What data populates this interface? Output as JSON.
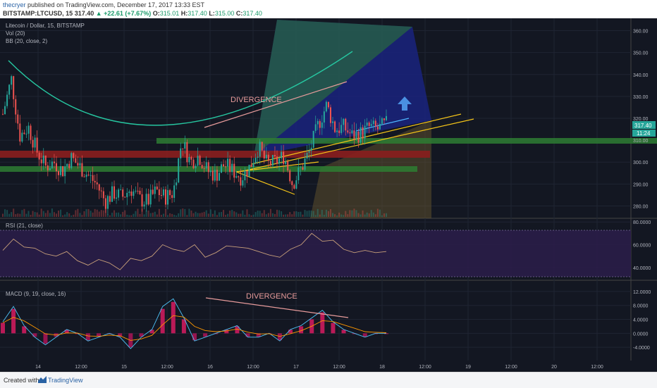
{
  "header": {
    "user": "thecryer",
    "published": "published on TradingView.com, December 17, 2017 13:33 EST",
    "symbol": "BITSTAMP:LTCUSD, 15",
    "last": "317.40",
    "change": "▲ +22.61 (+7.67%)",
    "o_label": "O:",
    "o_val": "315.01",
    "h_label": "H:",
    "h_val": "317.40",
    "l_label": "L:",
    "l_val": "315.00",
    "c_label": "C:",
    "c_val": "317.40"
  },
  "legend": {
    "title": "Litecoin / Dollar, 15, BITSTAMP",
    "vol": "Vol (20)",
    "bb": "BB (20, close, 2)",
    "rsi": "RSI (21, close)",
    "macd": "MACD (9, 19, close, 16)"
  },
  "annotations": {
    "divergence_price": "DIVERGENCE",
    "divergence_macd": "DIVERGENCE"
  },
  "price_badge": {
    "price": "317.40",
    "countdown": "11:24"
  },
  "footer": {
    "created": "Created with",
    "brand": "TradingView"
  },
  "colors": {
    "up": "#26a69a",
    "down": "#ef5350",
    "bg": "#131722",
    "rsi_fill": "#2a1d48",
    "accent_blue": "#2962a4"
  },
  "chart_data": [
    {
      "type": "candlestick",
      "title": "Litecoin / Dollar, 15, BITSTAMP",
      "y_ticks": [
        "360.00",
        "350.00",
        "340.00",
        "330.00",
        "320.00",
        "310.00",
        "300.00",
        "290.00",
        "280.00"
      ],
      "ylim": [
        275,
        365
      ],
      "x_ticks": [
        "14",
        "12:00",
        "15",
        "12:00",
        "16",
        "12:00",
        "17",
        "12:00",
        "18",
        "12:00",
        "19",
        "12:00",
        "20",
        "12:00"
      ],
      "close_series": [
        322,
        338,
        312,
        316,
        305,
        298,
        300,
        296,
        302,
        298,
        294,
        290,
        282,
        286,
        284,
        288,
        283,
        282,
        287,
        284,
        286,
        310,
        300,
        303,
        296,
        294,
        299,
        296,
        293,
        298,
        307,
        299,
        300,
        303,
        290,
        297,
        305,
        317,
        326,
        315,
        316,
        312,
        313,
        316,
        315,
        317.4
      ],
      "last_price": 317.4,
      "zones": [
        {
          "name": "green-band-top",
          "from": 308,
          "to": 311
        },
        {
          "name": "red-band",
          "from": 302,
          "to": 305
        },
        {
          "name": "green-band-low",
          "from": 296,
          "to": 298.5
        }
      ]
    },
    {
      "type": "line",
      "title": "RSI (21, close)",
      "y_ticks": [
        "80.0000",
        "60.0000",
        "40.0000"
      ],
      "ylim": [
        30,
        82
      ],
      "values": [
        55,
        65,
        58,
        57,
        52,
        50,
        54,
        46,
        42,
        47,
        44,
        38,
        48,
        46,
        50,
        60,
        56,
        54,
        60,
        49,
        53,
        59,
        58,
        57,
        54,
        51,
        49,
        56,
        60,
        70,
        63,
        64,
        56,
        53,
        55,
        53,
        54
      ]
    },
    {
      "type": "bar",
      "title": "MACD (9, 19, close, 16)",
      "y_ticks": [
        "12.0000",
        "8.0000",
        "4.0000",
        "0.0000",
        "-4.0000"
      ],
      "ylim": [
        -7,
        14
      ],
      "values": [
        3,
        7,
        2,
        -1,
        -3,
        -1,
        1,
        0,
        -2,
        -1,
        0,
        -1,
        -4,
        -1,
        1,
        7,
        9,
        4,
        -2,
        -1,
        0,
        1,
        2,
        -1,
        -1,
        0,
        -2,
        1,
        2,
        4,
        6,
        3,
        1,
        0,
        -1,
        0,
        0
      ]
    }
  ]
}
